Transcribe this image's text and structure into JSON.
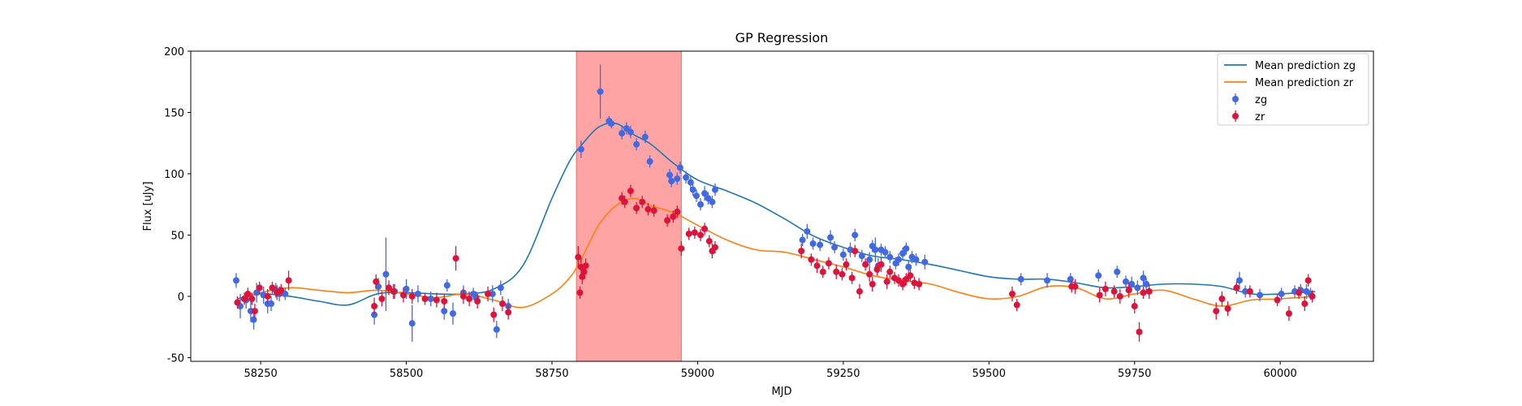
{
  "chart_data": {
    "type": "scatter",
    "title": "GP Regression",
    "xlabel": "MJD",
    "ylabel": "Flux [uJy]",
    "xlim": [
      58130,
      60160
    ],
    "ylim": [
      -53,
      200
    ],
    "xticks": [
      58250,
      58500,
      58750,
      59000,
      59250,
      59500,
      59750,
      60000
    ],
    "yticks": [
      -50,
      0,
      50,
      100,
      150,
      200
    ],
    "legend_position": "top-right",
    "highlight_region": {
      "x": [
        58792,
        58972
      ],
      "color": "#ff9a9a"
    },
    "lines": [
      {
        "name": "Mean prediction zg",
        "color": "#1f77b4",
        "x": [
          58210,
          58250,
          58300,
          58350,
          58400,
          58450,
          58500,
          58550,
          58600,
          58650,
          58700,
          58750,
          58780,
          58800,
          58830,
          58860,
          58890,
          58920,
          58960,
          59000,
          59050,
          59100,
          59150,
          59200,
          59250,
          59300,
          59350,
          59400,
          59450,
          59500,
          59550,
          59600,
          59650,
          59700,
          59750,
          59800,
          59850,
          59900,
          59950,
          60000,
          60060
        ],
        "y": [
          -2,
          2,
          0,
          -4,
          -7,
          2,
          3,
          2,
          2,
          6,
          25,
          80,
          110,
          123,
          138,
          141,
          132,
          124,
          108,
          95,
          86,
          76,
          63,
          49,
          40,
          33,
          30,
          26,
          21,
          16,
          14,
          14,
          11,
          7,
          8,
          10,
          10,
          8,
          2,
          2,
          4
        ]
      },
      {
        "name": "Mean prediction zr",
        "color": "#ff7f0e",
        "x": [
          58210,
          58250,
          58300,
          58350,
          58400,
          58450,
          58500,
          58550,
          58600,
          58650,
          58700,
          58750,
          58780,
          58800,
          58830,
          58860,
          58890,
          58920,
          58960,
          59000,
          59050,
          59100,
          59150,
          59200,
          59250,
          59300,
          59350,
          59400,
          59450,
          59500,
          59550,
          59600,
          59650,
          59700,
          59750,
          59800,
          59850,
          59900,
          59950,
          60000,
          60060
        ],
        "y": [
          -4,
          3,
          7,
          5,
          3,
          5,
          2,
          -1,
          2,
          -3,
          -9,
          2,
          15,
          30,
          58,
          74,
          80,
          74,
          68,
          58,
          46,
          38,
          36,
          30,
          24,
          17,
          13,
          10,
          3,
          -2,
          0,
          8,
          7,
          -2,
          2,
          5,
          -2,
          -8,
          -3,
          -2,
          0
        ]
      }
    ],
    "series": [
      {
        "name": "zg",
        "color": "#4169e1",
        "points": [
          [
            58208,
            13,
            6
          ],
          [
            58215,
            -8,
            10
          ],
          [
            58225,
            -3,
            7
          ],
          [
            58233,
            -12,
            9
          ],
          [
            58238,
            -19,
            8
          ],
          [
            58243,
            3,
            8
          ],
          [
            58255,
            1,
            7
          ],
          [
            58262,
            -6,
            8
          ],
          [
            58268,
            -6,
            6
          ],
          [
            58276,
            5,
            6
          ],
          [
            58282,
            2,
            6
          ],
          [
            58292,
            2,
            5
          ],
          [
            58445,
            -15,
            8
          ],
          [
            58452,
            8,
            7
          ],
          [
            58465,
            18,
            30
          ],
          [
            58480,
            4,
            6
          ],
          [
            58500,
            6,
            8
          ],
          [
            58510,
            -22,
            15
          ],
          [
            58520,
            2,
            7
          ],
          [
            58542,
            -2,
            6
          ],
          [
            58565,
            -12,
            7
          ],
          [
            58570,
            9,
            5
          ],
          [
            58580,
            -14,
            9
          ],
          [
            58598,
            3,
            6
          ],
          [
            58615,
            2,
            5
          ],
          [
            58620,
            -1,
            5
          ],
          [
            58648,
            2,
            7
          ],
          [
            58655,
            -27,
            7
          ],
          [
            58662,
            7,
            6
          ],
          [
            58675,
            -8,
            6
          ],
          [
            58800,
            120,
            7
          ],
          [
            58833,
            167,
            22
          ],
          [
            58848,
            143,
            4
          ],
          [
            58852,
            141,
            4
          ],
          [
            58870,
            133,
            5
          ],
          [
            58878,
            137,
            5
          ],
          [
            58885,
            134,
            5
          ],
          [
            58895,
            124,
            5
          ],
          [
            58910,
            130,
            5
          ],
          [
            58918,
            110,
            5
          ],
          [
            58952,
            99,
            5
          ],
          [
            58955,
            94,
            5
          ],
          [
            58965,
            96,
            5
          ],
          [
            58970,
            105,
            5
          ],
          [
            58980,
            97,
            5
          ],
          [
            58988,
            93,
            5
          ],
          [
            58992,
            87,
            5
          ],
          [
            58998,
            82,
            5
          ],
          [
            59005,
            75,
            5
          ],
          [
            59012,
            84,
            6
          ],
          [
            59018,
            80,
            5
          ],
          [
            59025,
            77,
            5
          ],
          [
            59030,
            87,
            5
          ],
          [
            59180,
            46,
            5
          ],
          [
            59188,
            53,
            6
          ],
          [
            59198,
            43,
            5
          ],
          [
            59210,
            42,
            5
          ],
          [
            59228,
            48,
            6
          ],
          [
            59235,
            40,
            5
          ],
          [
            59250,
            34,
            5
          ],
          [
            59262,
            38,
            6
          ],
          [
            59270,
            50,
            5
          ],
          [
            59282,
            33,
            5
          ],
          [
            59295,
            30,
            6
          ],
          [
            59300,
            41,
            5
          ],
          [
            59305,
            38,
            10
          ],
          [
            59310,
            25,
            6
          ],
          [
            59315,
            38,
            5
          ],
          [
            59322,
            36,
            5
          ],
          [
            59330,
            32,
            5
          ],
          [
            59340,
            27,
            5
          ],
          [
            59345,
            30,
            5
          ],
          [
            59352,
            35,
            5
          ],
          [
            59358,
            39,
            5
          ],
          [
            59362,
            24,
            5
          ],
          [
            59368,
            32,
            5
          ],
          [
            59375,
            30,
            5
          ],
          [
            59390,
            28,
            6
          ],
          [
            59555,
            14,
            5
          ],
          [
            59600,
            13,
            6
          ],
          [
            59640,
            14,
            5
          ],
          [
            59688,
            17,
            5
          ],
          [
            59720,
            20,
            5
          ],
          [
            59735,
            12,
            5
          ],
          [
            59745,
            10,
            6
          ],
          [
            59755,
            7,
            6
          ],
          [
            59765,
            15,
            6
          ],
          [
            59770,
            10,
            5
          ],
          [
            59930,
            13,
            7
          ],
          [
            59940,
            4,
            5
          ],
          [
            59965,
            1,
            5
          ],
          [
            60002,
            2,
            5
          ],
          [
            60025,
            4,
            5
          ],
          [
            60035,
            5,
            5
          ],
          [
            60045,
            4,
            6
          ],
          [
            60052,
            2,
            5
          ]
        ]
      },
      {
        "name": "zr",
        "color": "#dc143c",
        "points": [
          [
            58210,
            -5,
            5
          ],
          [
            58222,
            -2,
            5
          ],
          [
            58228,
            2,
            5
          ],
          [
            58235,
            -2,
            5
          ],
          [
            58240,
            -12,
            6
          ],
          [
            58248,
            7,
            5
          ],
          [
            58262,
            0,
            6
          ],
          [
            58270,
            7,
            5
          ],
          [
            58278,
            3,
            6
          ],
          [
            58285,
            5,
            5
          ],
          [
            58298,
            13,
            8
          ],
          [
            58445,
            -8,
            7
          ],
          [
            58448,
            12,
            6
          ],
          [
            58458,
            -2,
            6
          ],
          [
            58470,
            7,
            6
          ],
          [
            58478,
            4,
            6
          ],
          [
            58495,
            1,
            6
          ],
          [
            58510,
            0,
            6
          ],
          [
            58532,
            -2,
            5
          ],
          [
            58552,
            -3,
            6
          ],
          [
            58565,
            -4,
            6
          ],
          [
            58585,
            31,
            10
          ],
          [
            58598,
            0,
            6
          ],
          [
            58608,
            -2,
            6
          ],
          [
            58622,
            -4,
            6
          ],
          [
            58640,
            2,
            6
          ],
          [
            58650,
            -15,
            6
          ],
          [
            58665,
            -6,
            6
          ],
          [
            58675,
            -13,
            6
          ],
          [
            58795,
            32,
            9
          ],
          [
            58798,
            3,
            5
          ],
          [
            58800,
            24,
            8
          ],
          [
            58802,
            16,
            6
          ],
          [
            58805,
            20,
            6
          ],
          [
            58808,
            25,
            6
          ],
          [
            58870,
            80,
            5
          ],
          [
            58875,
            77,
            5
          ],
          [
            58885,
            86,
            5
          ],
          [
            58895,
            72,
            5
          ],
          [
            58905,
            77,
            5
          ],
          [
            58915,
            71,
            5
          ],
          [
            58925,
            70,
            5
          ],
          [
            58948,
            62,
            5
          ],
          [
            58958,
            65,
            5
          ],
          [
            58965,
            69,
            5
          ],
          [
            58972,
            39,
            6
          ],
          [
            58985,
            51,
            5
          ],
          [
            58995,
            52,
            5
          ],
          [
            59005,
            50,
            5
          ],
          [
            59012,
            55,
            5
          ],
          [
            59020,
            45,
            5
          ],
          [
            59025,
            37,
            6
          ],
          [
            59030,
            40,
            5
          ],
          [
            59178,
            37,
            6
          ],
          [
            59195,
            30,
            5
          ],
          [
            59205,
            25,
            6
          ],
          [
            59215,
            20,
            5
          ],
          [
            59225,
            27,
            5
          ],
          [
            59238,
            20,
            6
          ],
          [
            59248,
            18,
            5
          ],
          [
            59255,
            26,
            5
          ],
          [
            59265,
            15,
            5
          ],
          [
            59270,
            37,
            5
          ],
          [
            59278,
            4,
            6
          ],
          [
            59288,
            26,
            5
          ],
          [
            59295,
            18,
            6
          ],
          [
            59300,
            10,
            6
          ],
          [
            59308,
            22,
            5
          ],
          [
            59315,
            26,
            6
          ],
          [
            59325,
            12,
            6
          ],
          [
            59330,
            20,
            5
          ],
          [
            59338,
            15,
            5
          ],
          [
            59345,
            13,
            5
          ],
          [
            59352,
            10,
            5
          ],
          [
            59358,
            14,
            5
          ],
          [
            59365,
            17,
            5
          ],
          [
            59372,
            11,
            5
          ],
          [
            59380,
            10,
            5
          ],
          [
            59540,
            2,
            6
          ],
          [
            59548,
            -7,
            5
          ],
          [
            59642,
            8,
            5
          ],
          [
            59648,
            8,
            6
          ],
          [
            59690,
            1,
            6
          ],
          [
            59700,
            6,
            6
          ],
          [
            59715,
            4,
            5
          ],
          [
            59725,
            0,
            6
          ],
          [
            59740,
            5,
            6
          ],
          [
            59750,
            -8,
            6
          ],
          [
            59758,
            -29,
            8
          ],
          [
            59765,
            3,
            5
          ],
          [
            59775,
            4,
            6
          ],
          [
            59890,
            -12,
            7
          ],
          [
            59900,
            -2,
            6
          ],
          [
            59910,
            -10,
            6
          ],
          [
            59925,
            7,
            5
          ],
          [
            59948,
            4,
            5
          ],
          [
            59995,
            -3,
            5
          ],
          [
            60015,
            -14,
            6
          ],
          [
            60032,
            3,
            5
          ],
          [
            60042,
            -6,
            6
          ],
          [
            60048,
            13,
            5
          ],
          [
            60055,
            0,
            5
          ]
        ]
      }
    ]
  }
}
